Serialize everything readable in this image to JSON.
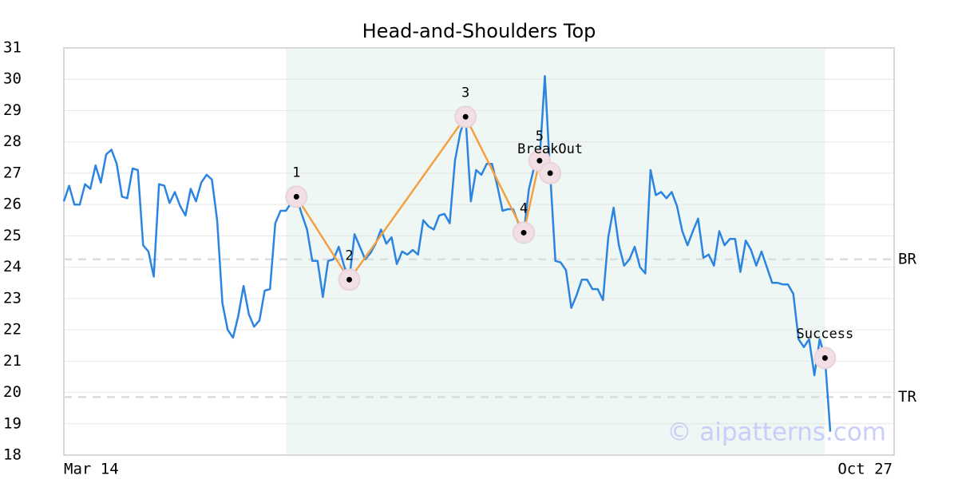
{
  "chart_data": {
    "type": "line",
    "title": "Head-and-Shoulders Top",
    "categories": [
      "Mar 14",
      null,
      null,
      null,
      null,
      null,
      null,
      null,
      null,
      null,
      null,
      null,
      null,
      null,
      null,
      null,
      null,
      null,
      null,
      null,
      null,
      null,
      null,
      null,
      null,
      null,
      null,
      null,
      null,
      null,
      null,
      null,
      null,
      null,
      null,
      null,
      null,
      null,
      null,
      null,
      null,
      null,
      null,
      null,
      null,
      null,
      null,
      null,
      null,
      null,
      null,
      null,
      null,
      null,
      null,
      null,
      null,
      null,
      null,
      null,
      null,
      null,
      null,
      null,
      null,
      null,
      null,
      null,
      null,
      null,
      null,
      null,
      null,
      null,
      null,
      null,
      null,
      null,
      null,
      null,
      null,
      null,
      null,
      null,
      null,
      null,
      null,
      null,
      null,
      null,
      null,
      null,
      null,
      null,
      null,
      null,
      null,
      null,
      null,
      null,
      null,
      null,
      null,
      null,
      null,
      null,
      null,
      null,
      null,
      null,
      null,
      null,
      null,
      null,
      null,
      null,
      null,
      null,
      null,
      null,
      null,
      null,
      null,
      null,
      null,
      null,
      null,
      null,
      null,
      null,
      null,
      null,
      null,
      null,
      null,
      null,
      null,
      null,
      null,
      null,
      null,
      null,
      null,
      null,
      null,
      "Oct 27"
    ],
    "series": [
      {
        "color": "#2a84e0",
        "values": [
          26.1,
          26.6,
          26.0,
          26.0,
          26.65,
          26.5,
          27.25,
          26.7,
          27.6,
          27.75,
          27.3,
          26.25,
          26.2,
          27.15,
          27.1,
          24.7,
          24.5,
          23.7,
          26.65,
          26.6,
          26.05,
          26.4,
          25.95,
          25.65,
          26.5,
          26.1,
          26.7,
          26.95,
          26.8,
          25.5,
          22.85,
          22.0,
          21.75,
          22.45,
          23.4,
          22.5,
          22.1,
          22.3,
          23.25,
          23.3,
          25.4,
          25.8,
          25.8,
          26.05,
          26.25,
          25.7,
          25.2,
          24.2,
          24.2,
          23.05,
          24.2,
          24.25,
          24.65,
          24.05,
          23.6,
          25.05,
          24.65,
          24.25,
          24.45,
          24.75,
          25.2,
          24.75,
          24.95,
          24.1,
          24.5,
          24.4,
          24.55,
          24.4,
          25.5,
          25.3,
          25.2,
          25.65,
          25.7,
          25.4,
          27.4,
          28.3,
          28.8,
          26.1,
          27.1,
          26.95,
          27.3,
          27.3,
          26.6,
          25.8,
          25.85,
          25.85,
          25.4,
          25.1,
          26.5,
          27.2,
          27.4,
          30.1,
          27.0,
          24.2,
          24.15,
          23.9,
          22.7,
          23.1,
          23.6,
          23.6,
          23.3,
          23.3,
          22.95,
          24.95,
          25.9,
          24.7,
          24.05,
          24.25,
          24.65,
          24.0,
          23.8,
          27.1,
          26.3,
          26.4,
          26.2,
          26.4,
          25.95,
          25.15,
          24.7,
          25.15,
          25.55,
          24.3,
          24.4,
          24.05,
          25.15,
          24.7,
          24.9,
          24.9,
          23.85,
          24.85,
          24.55,
          24.05,
          24.5,
          24.0,
          23.5,
          23.5,
          23.45,
          23.45,
          23.15,
          21.7,
          21.45,
          21.7,
          20.55,
          21.7,
          21.1,
          18.75
        ]
      }
    ],
    "pattern": {
      "color": "#f5a040",
      "points": [
        {
          "label": "1",
          "index": 44,
          "value": 26.25
        },
        {
          "label": "2",
          "index": 54,
          "value": 23.6
        },
        {
          "label": "3",
          "index": 76,
          "value": 28.8
        },
        {
          "label": "4",
          "index": 87,
          "value": 25.1
        },
        {
          "label": "5",
          "index": 90,
          "value": 27.4
        }
      ]
    },
    "signals": [
      {
        "label": "BreakOut",
        "index": 92,
        "value": 27.0
      },
      {
        "label": "Success",
        "index": 144,
        "value": 21.1
      }
    ],
    "levels": [
      {
        "label": "BR",
        "value": 24.25
      },
      {
        "label": "TR",
        "value": 19.85
      }
    ],
    "region": {
      "start": 42,
      "end": 144,
      "color": "#eef7f3"
    },
    "ylim": [
      18,
      31
    ],
    "yticks": [
      18,
      19,
      20,
      21,
      22,
      23,
      24,
      25,
      26,
      27,
      28,
      29,
      30,
      31
    ],
    "grid": true,
    "watermark": "© aipatterns.com"
  }
}
